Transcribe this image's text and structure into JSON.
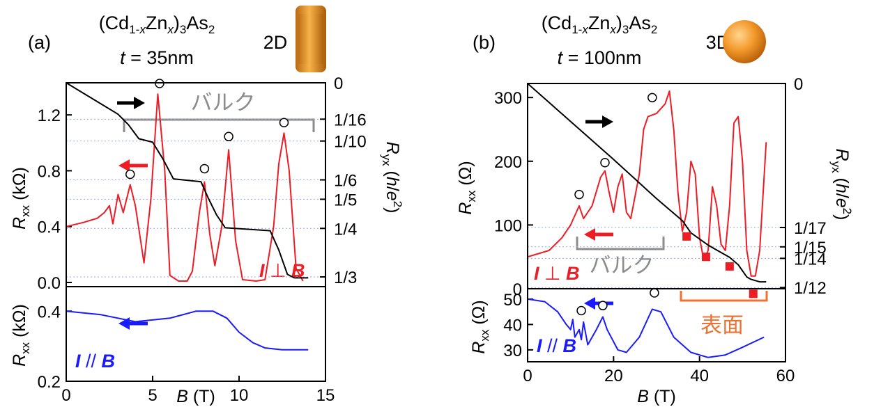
{
  "chart_data": [
    {
      "type": "line",
      "panel_label": "(a)",
      "formula": [
        "(Cd",
        "1-",
        "x",
        "Zn",
        "x",
        ")",
        "3",
        "As",
        "2"
      ],
      "thickness": [
        "t",
        " = 35nm"
      ],
      "dimension": "2D",
      "ylabel": [
        "R",
        "xx",
        " (kΩ)"
      ],
      "y2label": [
        "R",
        "yx",
        " (",
        "h",
        "/",
        "e",
        "2",
        ")"
      ],
      "annotation": "バルク",
      "current_label": [
        "I",
        " ⊥ ",
        "B"
      ],
      "xlim": [
        0,
        15
      ],
      "ylim": [
        -0.03,
        1.43
      ],
      "yticks": [
        {
          "value": 0,
          "label": "0.0"
        },
        0.4,
        0.8,
        1.2
      ],
      "y2lim": [
        0.35,
        0
      ],
      "y2ticks": [
        0,
        {
          "value": 0.0625,
          "label": "1/16"
        },
        {
          "value": 0.1,
          "label": "1/10"
        },
        {
          "value": 0.1667,
          "label": "1/6"
        },
        {
          "value": 0.2,
          "label": "1/5"
        },
        {
          "value": 0.25,
          "label": "1/4"
        },
        {
          "value": 0.3333,
          "label": "1/3"
        }
      ],
      "y2grid": true,
      "series": [
        {
          "color": "#ee1c24",
          "x": [
            0,
            1,
            1.8,
            2.2,
            2.5,
            2.7,
            3.0,
            3.3,
            3.7,
            4.0,
            4.5,
            4.9,
            5.3,
            5.7,
            6.0,
            6.5,
            7.0,
            7.3,
            7.7,
            8.0,
            8.3,
            8.6,
            9.0,
            9.4,
            9.8,
            10.2,
            11,
            11.5,
            12.0,
            12.3,
            12.6,
            12.9,
            13.3,
            13.7
          ],
          "values": [
            0.4,
            0.43,
            0.46,
            0.5,
            0.55,
            0.42,
            0.63,
            0.5,
            0.7,
            0.55,
            0.14,
            0.6,
            1.35,
            0.8,
            0.05,
            0.01,
            0.01,
            0.08,
            0.5,
            0.72,
            0.35,
            0.12,
            0.4,
            0.95,
            0.3,
            0.02,
            0.01,
            0.02,
            0.4,
            0.85,
            1.07,
            0.8,
            0.1,
            0.01
          ]
        },
        {
          "color": "#000000",
          "axis": "y2",
          "x": [
            0,
            1,
            2,
            3,
            3.6,
            4.2,
            5.0,
            5.6,
            6.2,
            7.8,
            8.2,
            8.7,
            9.2,
            11.8,
            12.3,
            12.8,
            13.2,
            14.0
          ],
          "values": [
            0,
            0.018,
            0.036,
            0.054,
            0.072,
            0.096,
            0.102,
            0.131,
            0.165,
            0.17,
            0.197,
            0.227,
            0.249,
            0.254,
            0.287,
            0.329,
            0.335,
            0.335
          ]
        },
        {
          "marker": "open-circle",
          "color": "#000000",
          "x": [
            3.7,
            5.4,
            8.0,
            9.4,
            12.6
          ],
          "values": [
            0.73,
            1.38,
            0.77,
            1.0,
            1.1
          ]
        }
      ]
    },
    {
      "type": "line",
      "ylabel": [
        "R",
        "xx",
        " (kΩ)"
      ],
      "xlabel": [
        "B",
        " (T)"
      ],
      "current_label": [
        "I",
        " // ",
        "B"
      ],
      "xlim": [
        0,
        15
      ],
      "xticks": [
        0,
        5,
        10,
        15
      ],
      "ylim": [
        0.2,
        0.47
      ],
      "yticks": [
        0.2,
        0.4
      ],
      "series": [
        {
          "color": "#1a1aff",
          "x": [
            0,
            2,
            4,
            6,
            7.5,
            8.5,
            9.3,
            10,
            10.8,
            11.5,
            12.5,
            14
          ],
          "values": [
            0.4,
            0.39,
            0.37,
            0.38,
            0.4,
            0.4,
            0.38,
            0.34,
            0.31,
            0.295,
            0.29,
            0.29
          ]
        }
      ]
    },
    {
      "type": "line",
      "panel_label": "(b)",
      "formula": [
        "(Cd",
        "1-",
        "x",
        "Zn",
        "x",
        ")",
        "3",
        "As",
        "2"
      ],
      "thickness": [
        "t",
        " = 100nm"
      ],
      "dimension": "3D",
      "ylabel": [
        "R",
        "xx",
        " (Ω)"
      ],
      "y2label": [
        "R",
        "yx",
        " (",
        "h",
        "/",
        "e",
        "2",
        ")"
      ],
      "annotation": "バルク",
      "current_label": [
        "I",
        " ⊥ ",
        "B"
      ],
      "xlim": [
        0,
        60
      ],
      "ylim": [
        0,
        322
      ],
      "yticks": [
        0,
        100,
        200,
        300
      ],
      "y2lim": [
        0.0838,
        0
      ],
      "y2ticks": [
        0,
        {
          "value": 0.0588,
          "label": "1/17"
        },
        {
          "value": 0.0667,
          "label": "1/15"
        },
        {
          "value": 0.0714,
          "label": "1/14"
        },
        {
          "value": 0.0833,
          "label": "1/12"
        }
      ],
      "y2grid": true,
      "series": [
        {
          "color": "#ee1c24",
          "x": [
            0,
            5,
            8,
            10,
            12,
            13,
            15,
            17,
            18,
            19,
            20,
            21,
            22,
            23,
            24,
            26,
            27,
            28,
            30,
            32,
            33,
            34,
            35,
            36,
            37,
            38,
            39,
            40,
            41,
            42,
            43,
            44,
            45,
            46,
            47,
            48,
            49,
            50,
            51,
            52,
            53,
            54,
            55.5
          ],
          "values": [
            50,
            60,
            80,
            100,
            130,
            110,
            130,
            175,
            185,
            150,
            120,
            160,
            180,
            120,
            110,
            180,
            250,
            270,
            275,
            290,
            310,
            250,
            150,
            90,
            120,
            200,
            180,
            80,
            45,
            60,
            160,
            130,
            70,
            60,
            130,
            260,
            270,
            200,
            60,
            20,
            20,
            60,
            230
          ]
        },
        {
          "color": "#000000",
          "axis": "y2",
          "x": [
            0,
            10,
            20,
            30,
            36,
            38,
            42,
            44,
            47,
            49,
            51,
            52,
            54,
            55.5
          ],
          "values": [
            0,
            0.0155,
            0.031,
            0.047,
            0.056,
            0.061,
            0.066,
            0.068,
            0.071,
            0.074,
            0.079,
            0.08,
            0.081,
            0.081
          ]
        },
        {
          "marker": "open-circle",
          "color": "#000000",
          "x": [
            12,
            18,
            29
          ],
          "values": [
            138,
            188,
            290
          ]
        },
        {
          "marker": "square",
          "color": "#ee1c24",
          "x": [
            37,
            41.5,
            47,
            52.5
          ],
          "values": [
            82,
            50,
            35,
            -8
          ]
        }
      ]
    },
    {
      "type": "line",
      "ylabel": [
        "R",
        "xx",
        " (Ω)"
      ],
      "xlabel": [
        "B",
        " (T)"
      ],
      "current_label": [
        "I",
        " // ",
        "B"
      ],
      "annotation": "表面",
      "xlim": [
        0,
        60
      ],
      "xticks": [
        0,
        20,
        40,
        60
      ],
      "ylim": [
        25.3,
        54.1
      ],
      "yticks": [
        30,
        40,
        50
      ],
      "series": [
        {
          "color": "#1a1aff",
          "x": [
            0,
            4,
            7,
            9,
            10,
            10.5,
            11,
            12,
            12.5,
            13,
            14,
            16,
            17.5,
            18.5,
            21,
            23,
            26,
            29,
            31,
            34,
            38,
            42,
            46,
            50,
            55
          ],
          "values": [
            50,
            49,
            45,
            40,
            38,
            42,
            35,
            38,
            34,
            41,
            32,
            38,
            43,
            38,
            30,
            29,
            35,
            46,
            45,
            35,
            29,
            27,
            28,
            31,
            35
          ]
        },
        {
          "marker": "open-circle",
          "color": "#000000",
          "x": [
            12.5,
            17.5,
            29.5
          ],
          "values": [
            43,
            45,
            50
          ]
        }
      ]
    }
  ]
}
